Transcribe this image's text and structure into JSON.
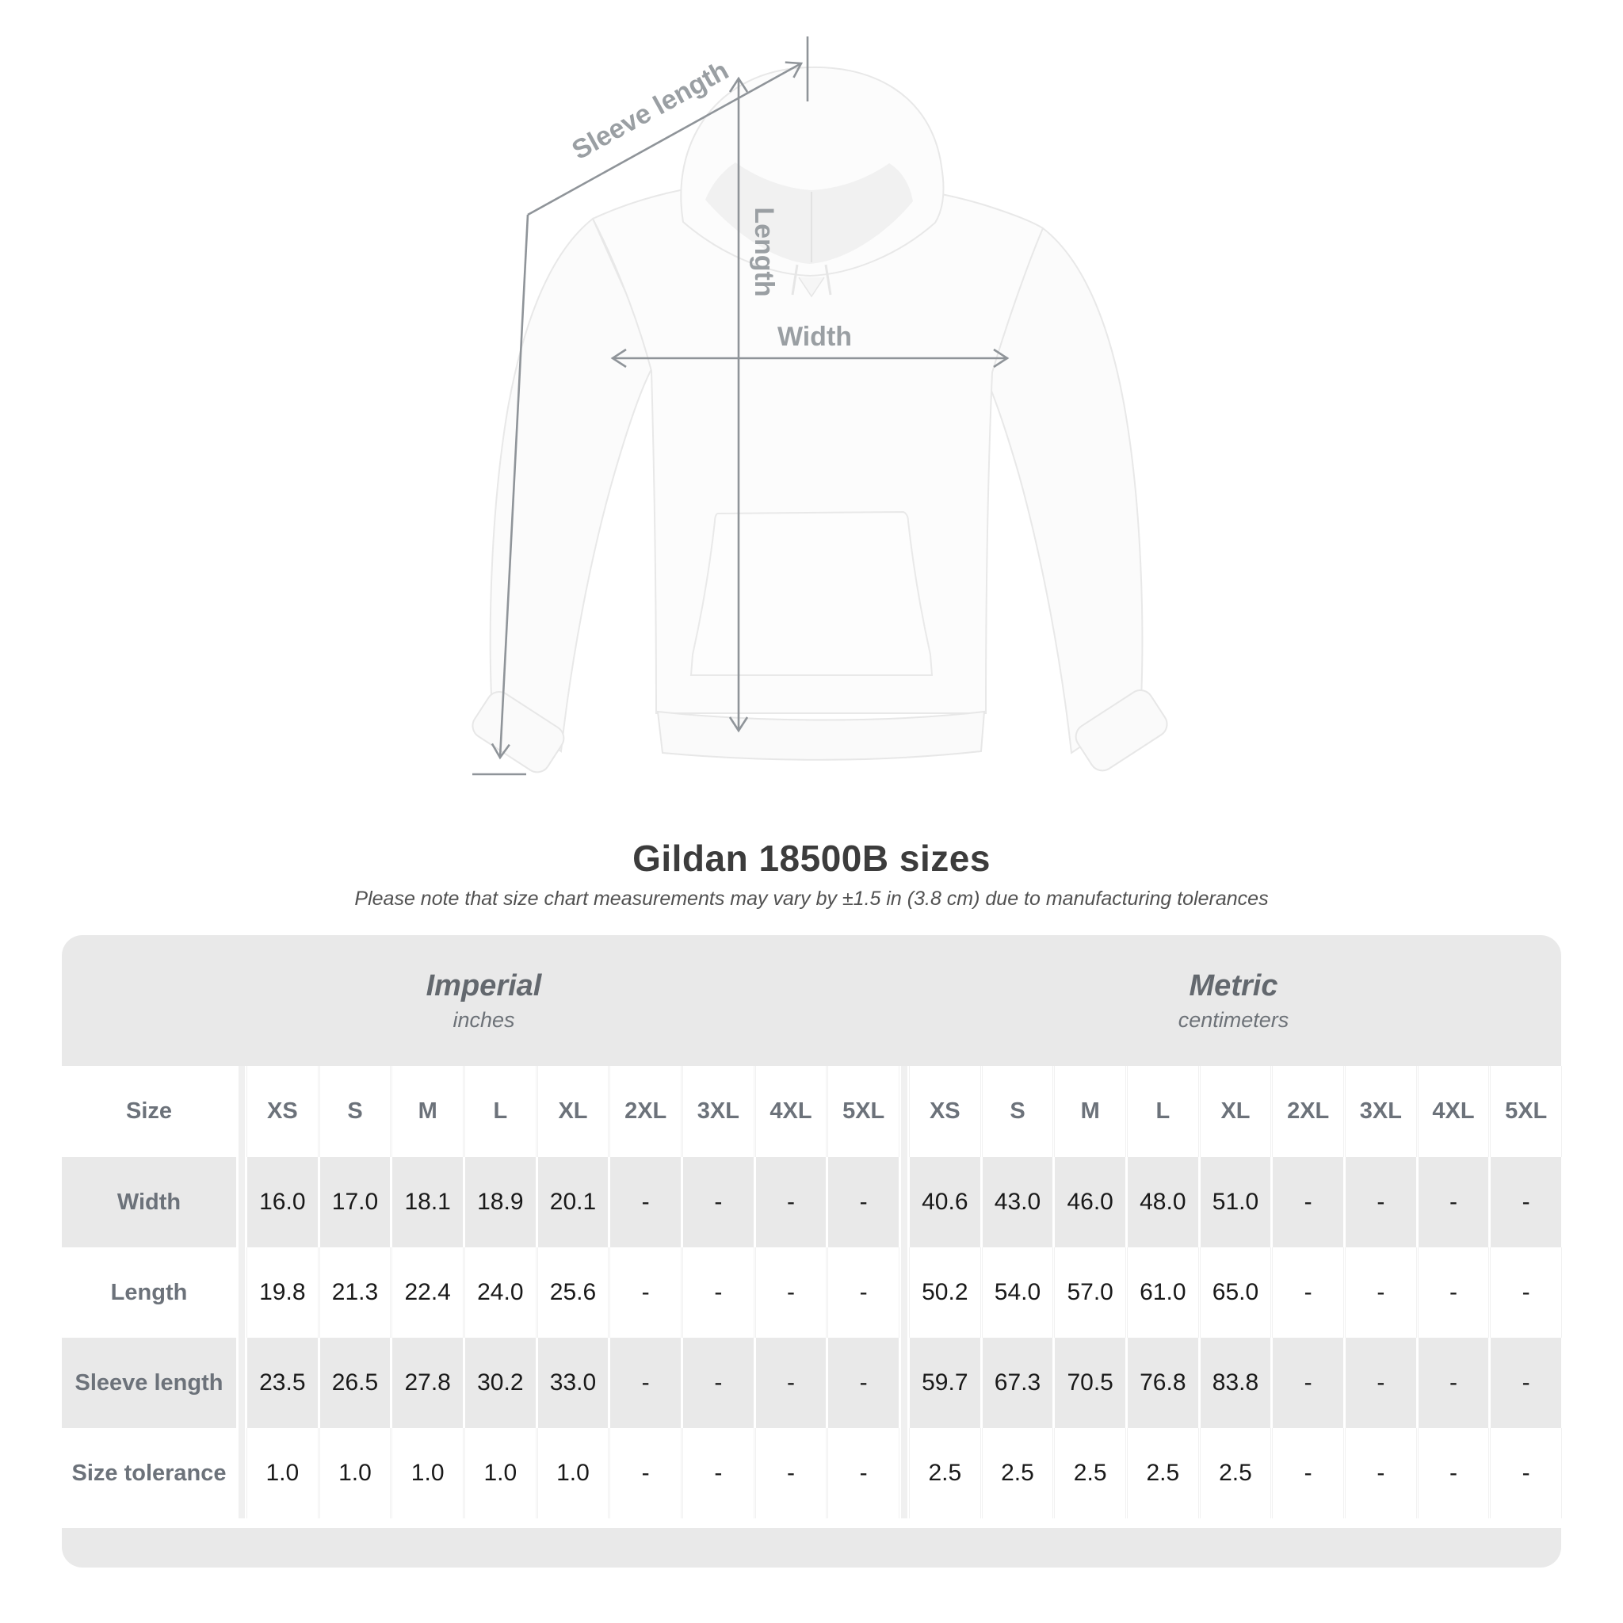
{
  "title": "Gildan 18500B sizes",
  "subtitle": "Please note that size chart measurements may vary by ±1.5 in (3.8 cm) due to manufacturing tolerances",
  "diagram": {
    "labels": {
      "sleeve_length": "Sleeve length",
      "length": "Length",
      "width": "Width"
    }
  },
  "table": {
    "unit_groups": [
      {
        "label": "Imperial",
        "sublabel": "inches"
      },
      {
        "label": "Metric",
        "sublabel": "centimeters"
      }
    ],
    "size_header": "Size",
    "sizes": [
      "XS",
      "S",
      "M",
      "L",
      "XL",
      "2XL",
      "3XL",
      "4XL",
      "5XL"
    ],
    "rows": [
      {
        "label": "Width",
        "imperial": [
          "16.0",
          "17.0",
          "18.1",
          "18.9",
          "20.1",
          "-",
          "-",
          "-",
          "-"
        ],
        "metric": [
          "40.6",
          "43.0",
          "46.0",
          "48.0",
          "51.0",
          "-",
          "-",
          "-",
          "-"
        ]
      },
      {
        "label": "Length",
        "imperial": [
          "19.8",
          "21.3",
          "22.4",
          "24.0",
          "25.6",
          "-",
          "-",
          "-",
          "-"
        ],
        "metric": [
          "50.2",
          "54.0",
          "57.0",
          "61.0",
          "65.0",
          "-",
          "-",
          "-",
          "-"
        ]
      },
      {
        "label": "Sleeve length",
        "imperial": [
          "23.5",
          "26.5",
          "27.8",
          "30.2",
          "33.0",
          "-",
          "-",
          "-",
          "-"
        ],
        "metric": [
          "59.7",
          "67.3",
          "70.5",
          "76.8",
          "83.8",
          "-",
          "-",
          "-",
          "-"
        ]
      },
      {
        "label": "Size tolerance",
        "imperial": [
          "1.0",
          "1.0",
          "1.0",
          "1.0",
          "1.0",
          "-",
          "-",
          "-",
          "-"
        ],
        "metric": [
          "2.5",
          "2.5",
          "2.5",
          "2.5",
          "2.5",
          "-",
          "-",
          "-",
          "-"
        ]
      }
    ]
  },
  "colors": {
    "row_gray": "#e9e9e9",
    "separator_gray": "#f0f0f0",
    "header_text_gray": "#6c727a",
    "value_text": "#191919",
    "diagram_line": "#8f9499",
    "diagram_text": "#9a9fa3",
    "title_text": "#3c3c3c"
  }
}
